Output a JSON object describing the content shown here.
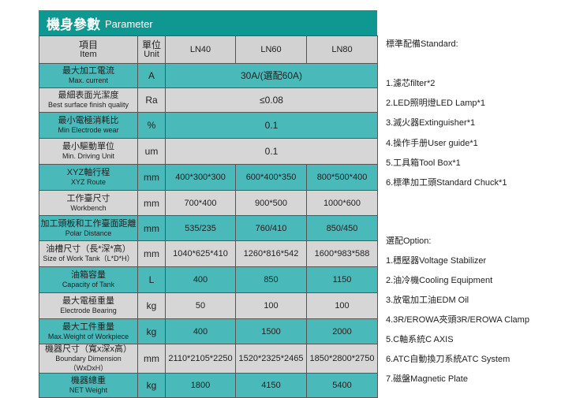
{
  "title": {
    "zh": "機身參數",
    "en": "Parameter"
  },
  "header": {
    "item_zh": "項目",
    "item_en": "Item",
    "unit_zh": "單位",
    "unit_en": "Unit",
    "models": [
      "LN40",
      "LN60",
      "LN80"
    ]
  },
  "rows": [
    {
      "zh": "最大加工電流",
      "en": "Max. current",
      "unit": "A",
      "merged": "30A/(選配60A)"
    },
    {
      "zh": "最細表面光潔度",
      "en": "Best surface finish quality",
      "unit": "Ra",
      "merged": "≤0.08"
    },
    {
      "zh": "最小電極消耗比",
      "en": "Min Electrode wear",
      "unit": "%",
      "merged": "0.1"
    },
    {
      "zh": "最小驅動單位",
      "en": "Min. Driving Unit",
      "unit": "um",
      "merged": "0.1"
    },
    {
      "zh": "XYZ軸行程",
      "en": "XYZ Route",
      "unit": "mm",
      "values": [
        "400*300*300",
        "600*400*350",
        "800*500*400"
      ]
    },
    {
      "zh": "工作臺尺寸",
      "en": "Workbench",
      "unit": "mm",
      "values": [
        "700*400",
        "900*500",
        "1000*600"
      ]
    },
    {
      "zh": "加工頭板和工作臺面距離",
      "en": "Polar Distance",
      "unit": "mm",
      "values": [
        "535/235",
        "760/410",
        "850/450"
      ]
    },
    {
      "zh": "油槽尺寸（長*深*高）",
      "en": "Size of Work Tank（L*D*H）",
      "unit": "mm",
      "values": [
        "1040*625*410",
        "1260*816*542",
        "1600*983*588"
      ]
    },
    {
      "zh": "油箱容量",
      "en": "Capacity of Tank",
      "unit": "L",
      "values": [
        "400",
        "850",
        "1150"
      ]
    },
    {
      "zh": "最大電極重量",
      "en": "Electrode Bearing",
      "unit": "kg",
      "values": [
        "50",
        "100",
        "100"
      ]
    },
    {
      "zh": "最大工件重量",
      "en": "Max.Weight of Workpiece",
      "unit": "kg",
      "values": [
        "400",
        "1500",
        "2000"
      ]
    },
    {
      "zh": "機器尺寸（寬x深x高）",
      "en": "Boundary Dimension（WxDxH）",
      "unit": "mm",
      "values": [
        "2110*2105*2250",
        "1520*2325*2465",
        "1850*2800*2750"
      ]
    },
    {
      "zh": "機器總重",
      "en": "NET Weight",
      "unit": "kg",
      "values": [
        "1800",
        "4150",
        "5400"
      ]
    }
  ],
  "standard": {
    "heading": "標準配備Standard:",
    "items": [
      "1.濾芯filter*2",
      "2.LED照明燈LED Lamp*1",
      "3.滅火器Extinguisher*1",
      "4.操作手册User guide*1",
      "5.工具箱Tool Box*1",
      "6.標準加工頭Standard  Chuck*1"
    ]
  },
  "option": {
    "heading": "選配Option:",
    "items": [
      "1.穩壓器Voltage Stabilizer",
      "2.油冷機Cooling Equipment",
      "3.放電加工油EDM Oil",
      "4.3R/EROWA夾頭3R/EROWA Clamp",
      "5.C軸系統C AXIS",
      "6.ATC自動換刀系統ATC System",
      "7.磁盤Magnetic Plate"
    ]
  },
  "colors": {
    "title": "#0f9891",
    "teal_row": "#4ab9b9",
    "gray_row": "#d6d6d6"
  }
}
